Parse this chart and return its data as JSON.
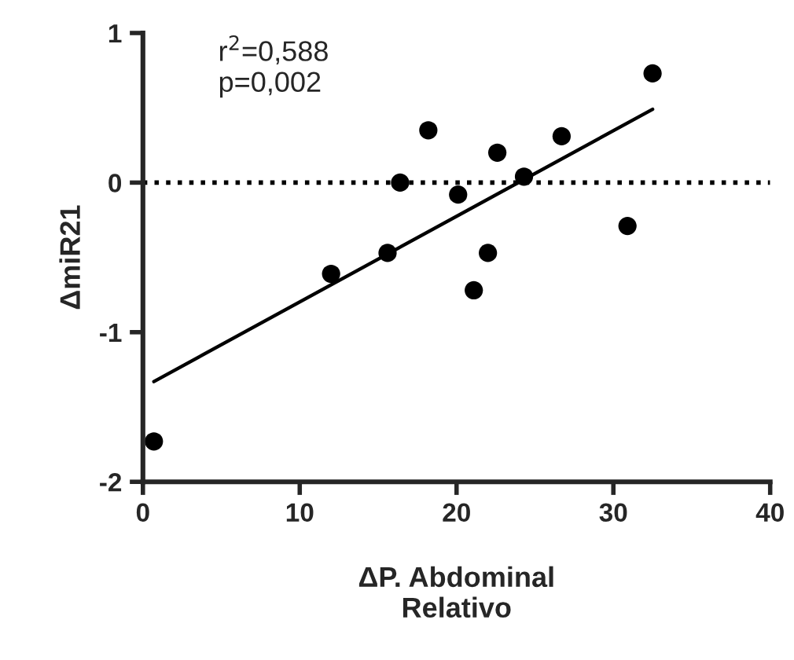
{
  "chart_data": {
    "type": "scatter",
    "xlabel": "ΔP. Abdominal\nRelativo",
    "ylabel": "ΔmiR21",
    "annotations": [
      "r$^{2}$=0,588",
      "p=0,002"
    ],
    "series": [
      {
        "color": "#000000",
        "marker": "circle",
        "x": [
          0.7,
          12,
          15.6,
          16.4,
          18.2,
          20.1,
          21.1,
          22,
          22.6,
          24.3,
          26.7,
          30.9,
          32.5
        ],
        "values": [
          -1.73,
          -0.61,
          -0.47,
          0.0,
          0.35,
          -0.08,
          -0.72,
          -0.47,
          0.2,
          0.04,
          0.31,
          -0.29,
          0.73
        ]
      },
      {
        "type": "line",
        "color": "#000000",
        "x": [
          0.7,
          32.5
        ],
        "values": [
          -1.33,
          0.49
        ]
      }
    ],
    "ref_lines": [
      {
        "axis": "y",
        "value": 0,
        "line_style": "dotted",
        "color": "#000000"
      }
    ],
    "xlim": [
      0,
      40
    ],
    "ylim": [
      -2,
      1
    ],
    "xticks": [
      0,
      10,
      20,
      30,
      40
    ],
    "yticks": [
      -2,
      -1,
      0,
      1
    ],
    "grid": false,
    "legend": false
  }
}
